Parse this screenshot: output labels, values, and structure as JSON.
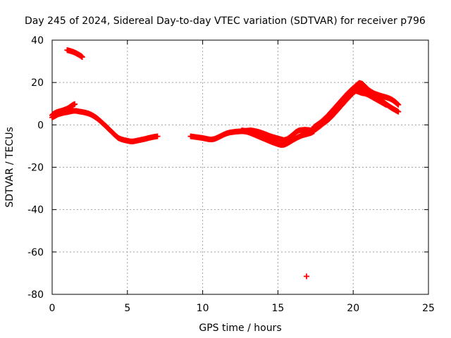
{
  "chart_data": {
    "type": "scatter",
    "title": "Day 245 of 2024, Sidereal Day-to-day VTEC variation (SDTVAR) for receiver p796",
    "xlabel": "GPS time / hours",
    "ylabel": "SDTVAR / TECUs",
    "xlim": [
      0,
      25
    ],
    "ylim": [
      -80,
      40
    ],
    "xticks": [
      0,
      5,
      10,
      15,
      20,
      25
    ],
    "yticks": [
      -80,
      -60,
      -40,
      -20,
      0,
      20,
      40
    ],
    "grid": true,
    "marker": "+",
    "series": [
      {
        "name": "SDTVAR",
        "color": "#ff0000",
        "segments": [
          [
            [
              0.0,
              4.5
            ],
            [
              0.1,
              5.2
            ],
            [
              0.25,
              5.8
            ],
            [
              0.4,
              6.2
            ],
            [
              0.55,
              6.5
            ],
            [
              0.7,
              6.8
            ],
            [
              0.85,
              7.2
            ],
            [
              1.0,
              7.6
            ],
            [
              1.1,
              8.0
            ],
            [
              1.2,
              8.5
            ],
            [
              1.3,
              9.0
            ],
            [
              1.4,
              9.5
            ],
            [
              1.5,
              9.8
            ]
          ],
          [
            [
              0.0,
              3.5
            ],
            [
              0.2,
              4.2
            ],
            [
              0.4,
              5.0
            ],
            [
              0.6,
              5.4
            ],
            [
              0.8,
              5.8
            ],
            [
              1.0,
              6.0
            ],
            [
              1.2,
              6.3
            ],
            [
              1.4,
              6.6
            ],
            [
              1.6,
              6.6
            ],
            [
              1.8,
              6.3
            ],
            [
              2.0,
              6.1
            ],
            [
              2.2,
              5.8
            ],
            [
              2.4,
              5.4
            ],
            [
              2.6,
              4.8
            ],
            [
              2.8,
              4.0
            ],
            [
              3.0,
              3.0
            ],
            [
              3.2,
              1.8
            ],
            [
              3.4,
              0.5
            ],
            [
              3.6,
              -0.8
            ],
            [
              3.8,
              -2.2
            ],
            [
              4.0,
              -3.6
            ],
            [
              4.2,
              -5.0
            ],
            [
              4.4,
              -6.2
            ],
            [
              4.6,
              -6.8
            ],
            [
              4.8,
              -7.2
            ],
            [
              5.0,
              -7.5
            ],
            [
              5.2,
              -7.8
            ],
            [
              5.4,
              -7.8
            ],
            [
              5.6,
              -7.5
            ],
            [
              5.8,
              -7.2
            ],
            [
              6.0,
              -6.9
            ],
            [
              6.2,
              -6.6
            ],
            [
              6.4,
              -6.2
            ],
            [
              6.6,
              -5.9
            ],
            [
              6.8,
              -5.6
            ],
            [
              7.0,
              -5.4
            ]
          ],
          [
            [
              1.0,
              35.3
            ],
            [
              1.15,
              35.0
            ],
            [
              1.3,
              34.7
            ],
            [
              1.45,
              34.3
            ],
            [
              1.6,
              33.8
            ],
            [
              1.75,
              33.2
            ],
            [
              1.9,
              32.6
            ],
            [
              2.0,
              32.0
            ]
          ],
          [
            [
              9.2,
              -5.4
            ],
            [
              9.4,
              -5.6
            ],
            [
              9.6,
              -5.8
            ],
            [
              9.8,
              -6.0
            ],
            [
              10.0,
              -6.2
            ],
            [
              10.2,
              -6.5
            ],
            [
              10.4,
              -6.8
            ],
            [
              10.6,
              -6.9
            ],
            [
              10.8,
              -6.6
            ],
            [
              11.0,
              -6.0
            ],
            [
              11.2,
              -5.3
            ],
            [
              11.4,
              -4.6
            ],
            [
              11.6,
              -4.0
            ],
            [
              11.8,
              -3.6
            ],
            [
              12.0,
              -3.4
            ],
            [
              12.2,
              -3.2
            ],
            [
              12.4,
              -3.1
            ],
            [
              12.6,
              -3.0
            ],
            [
              12.8,
              -3.1
            ],
            [
              13.0,
              -3.4
            ],
            [
              13.2,
              -3.9
            ],
            [
              13.4,
              -4.5
            ],
            [
              13.6,
              -5.1
            ],
            [
              13.8,
              -5.7
            ],
            [
              14.0,
              -6.3
            ],
            [
              14.2,
              -6.9
            ],
            [
              14.4,
              -7.5
            ],
            [
              14.6,
              -8.1
            ],
            [
              14.8,
              -8.6
            ],
            [
              15.0,
              -9.1
            ],
            [
              15.2,
              -9.5
            ],
            [
              15.4,
              -9.4
            ],
            [
              15.6,
              -8.8
            ],
            [
              15.8,
              -8.0
            ],
            [
              16.0,
              -7.1
            ],
            [
              16.2,
              -6.3
            ],
            [
              16.4,
              -5.6
            ],
            [
              16.6,
              -5.0
            ],
            [
              16.8,
              -4.6
            ],
            [
              17.0,
              -4.2
            ],
            [
              17.2,
              -3.8
            ],
            [
              17.4,
              -3.0
            ]
          ],
          [
            [
              12.6,
              -2.6
            ],
            [
              12.8,
              -2.8
            ],
            [
              13.0,
              -2.7
            ],
            [
              13.2,
              -2.6
            ],
            [
              13.4,
              -2.8
            ],
            [
              13.6,
              -3.1
            ],
            [
              13.8,
              -3.5
            ],
            [
              14.0,
              -4.0
            ],
            [
              14.2,
              -4.5
            ],
            [
              14.4,
              -5.1
            ],
            [
              14.6,
              -5.6
            ],
            [
              14.8,
              -6.0
            ],
            [
              15.0,
              -6.4
            ],
            [
              15.2,
              -6.8
            ],
            [
              15.4,
              -7.2
            ],
            [
              15.6,
              -6.8
            ],
            [
              15.8,
              -5.8
            ],
            [
              16.0,
              -4.6
            ],
            [
              16.2,
              -3.4
            ],
            [
              16.4,
              -2.6
            ],
            [
              16.6,
              -2.4
            ],
            [
              16.8,
              -2.3
            ],
            [
              17.0,
              -2.4
            ],
            [
              17.2,
              -2.6
            ],
            [
              17.4,
              -2.5
            ]
          ],
          [
            [
              17.4,
              -2.2
            ],
            [
              17.6,
              -1.6
            ],
            [
              17.8,
              -0.6
            ],
            [
              18.0,
              0.6
            ],
            [
              18.2,
              1.6
            ],
            [
              18.4,
              2.8
            ],
            [
              18.6,
              4.2
            ],
            [
              18.8,
              5.8
            ],
            [
              19.0,
              7.4
            ],
            [
              19.2,
              9.0
            ],
            [
              19.4,
              10.6
            ],
            [
              19.6,
              12.2
            ],
            [
              19.8,
              13.7
            ],
            [
              20.0,
              15.1
            ],
            [
              20.2,
              16.3
            ],
            [
              20.4,
              17.2
            ],
            [
              20.6,
              17.2
            ],
            [
              20.8,
              16.6
            ],
            [
              21.0,
              15.8
            ],
            [
              21.2,
              14.9
            ],
            [
              21.4,
              14.0
            ],
            [
              21.6,
              13.0
            ],
            [
              21.8,
              11.9
            ],
            [
              22.0,
              10.8
            ],
            [
              22.2,
              9.7
            ],
            [
              22.4,
              8.7
            ],
            [
              22.6,
              7.8
            ],
            [
              22.8,
              7.0
            ],
            [
              23.0,
              6.2
            ]
          ],
          [
            [
              17.4,
              -1.0
            ],
            [
              17.6,
              0.0
            ],
            [
              17.8,
              1.0
            ],
            [
              18.0,
              2.2
            ],
            [
              18.2,
              3.6
            ],
            [
              18.4,
              5.0
            ],
            [
              18.6,
              6.6
            ],
            [
              18.8,
              8.2
            ],
            [
              19.0,
              9.8
            ],
            [
              19.2,
              11.4
            ],
            [
              19.4,
              13.0
            ],
            [
              19.6,
              14.6
            ],
            [
              19.8,
              16.0
            ],
            [
              20.0,
              17.3
            ],
            [
              20.2,
              18.6
            ],
            [
              20.4,
              19.8
            ],
            [
              20.6,
              19.4
            ],
            [
              20.8,
              18.0
            ],
            [
              21.0,
              16.6
            ],
            [
              21.2,
              15.6
            ],
            [
              21.4,
              14.8
            ],
            [
              21.6,
              14.3
            ],
            [
              21.8,
              13.8
            ],
            [
              22.0,
              13.4
            ],
            [
              22.2,
              13.0
            ],
            [
              22.4,
              12.5
            ],
            [
              22.6,
              11.8
            ],
            [
              22.8,
              10.8
            ],
            [
              23.0,
              9.5
            ]
          ],
          [
            [
              20.2,
              16.0
            ],
            [
              20.4,
              15.5
            ],
            [
              20.6,
              15.0
            ],
            [
              20.8,
              14.8
            ],
            [
              21.0,
              14.2
            ],
            [
              21.2,
              13.4
            ],
            [
              21.4,
              12.6
            ],
            [
              21.6,
              11.8
            ],
            [
              21.8,
              11.0
            ],
            [
              22.0,
              10.2
            ],
            [
              22.2,
              9.4
            ]
          ],
          [
            [
              16.9,
              -71.5
            ]
          ]
        ]
      }
    ]
  }
}
